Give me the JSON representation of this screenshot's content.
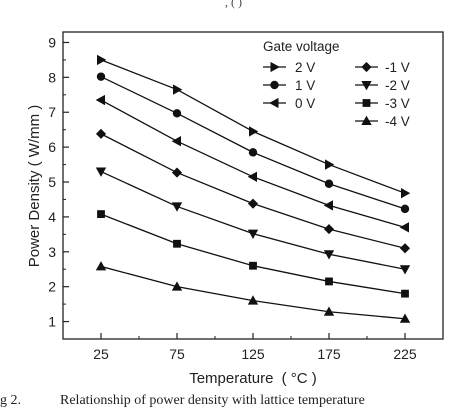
{
  "top_fragment": ", ( )",
  "caption": {
    "label": "g 2.",
    "text": "Relationship of power density with lattice temperature"
  },
  "chart_data": {
    "type": "line",
    "x": [
      25,
      75,
      125,
      175,
      225
    ],
    "xlabel": "Temperature",
    "xlabel_unit": "( °C )",
    "ylabel": "Power Density ( W/mm )",
    "xlim": [
      0,
      250
    ],
    "ylim": [
      0.5,
      9.3
    ],
    "xticks": [
      25,
      75,
      125,
      175,
      225
    ],
    "yticks": [
      1,
      2,
      3,
      4,
      5,
      6,
      7,
      8,
      9
    ],
    "grid": false,
    "legend_title": "Gate voltage",
    "legend_position": "top-right",
    "series": [
      {
        "name": "2 V",
        "marker": "triangle-right",
        "values": [
          8.5,
          7.65,
          6.45,
          5.5,
          4.68
        ]
      },
      {
        "name": "1 V",
        "marker": "circle",
        "values": [
          8.02,
          6.97,
          5.85,
          4.95,
          4.23
        ]
      },
      {
        "name": "0 V",
        "marker": "triangle-left",
        "values": [
          7.35,
          6.17,
          5.15,
          4.33,
          3.7
        ]
      },
      {
        "name": "-1 V",
        "marker": "diamond",
        "values": [
          6.38,
          5.27,
          4.38,
          3.65,
          3.1
        ]
      },
      {
        "name": "-2 V",
        "marker": "triangle-down",
        "values": [
          5.3,
          4.3,
          3.52,
          2.93,
          2.5
        ]
      },
      {
        "name": "-3 V",
        "marker": "square",
        "values": [
          4.08,
          3.23,
          2.6,
          2.15,
          1.8
        ]
      },
      {
        "name": "-4 V",
        "marker": "triangle-up",
        "values": [
          2.58,
          2.0,
          1.6,
          1.28,
          1.08
        ]
      }
    ],
    "line_color": "#111111"
  }
}
